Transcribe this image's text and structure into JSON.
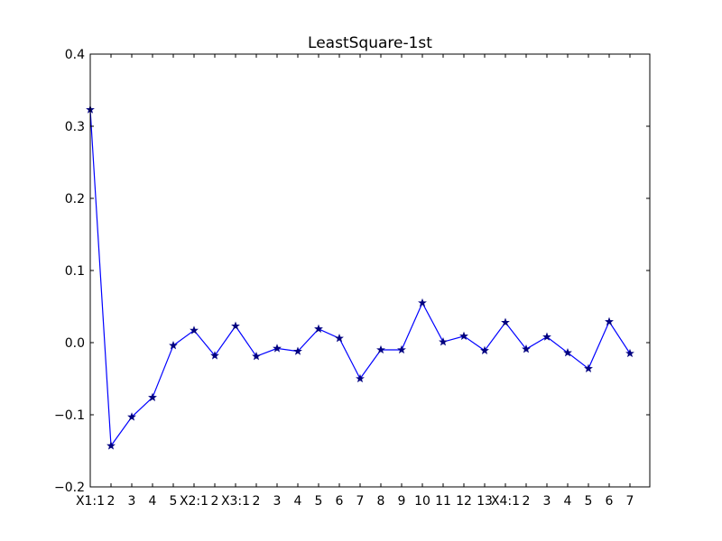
{
  "chart_data": {
    "type": "line",
    "title": "LeastSquare-1st",
    "xlabel": "",
    "ylabel": "",
    "ylim": [
      -0.2,
      0.4
    ],
    "yticks": [
      -0.2,
      -0.1,
      0.0,
      0.1,
      0.2,
      0.3,
      0.4
    ],
    "ytick_labels": [
      "−0.2",
      "−0.1",
      "0.0",
      "0.1",
      "0.2",
      "0.3",
      "0.4"
    ],
    "grid": false,
    "legend": null,
    "marker": "star",
    "line_color": "#0000ff",
    "marker_color": "#000080",
    "categories": [
      "X1:1",
      "2",
      "3",
      "4",
      "5",
      "X2:1",
      "2",
      "X3:1",
      "2",
      "3",
      "4",
      "5",
      "6",
      "7",
      "8",
      "9",
      "10",
      "11",
      "12",
      "13",
      "X4:1",
      "2",
      "3",
      "4",
      "5",
      "6",
      "7"
    ],
    "values": [
      0.323,
      -0.143,
      -0.103,
      -0.076,
      -0.004,
      0.017,
      -0.018,
      0.023,
      -0.019,
      -0.008,
      -0.012,
      0.019,
      0.006,
      -0.05,
      -0.01,
      -0.01,
      0.055,
      0.001,
      0.009,
      -0.011,
      0.028,
      -0.009,
      0.008,
      -0.014,
      -0.036,
      0.029,
      -0.015
    ]
  }
}
